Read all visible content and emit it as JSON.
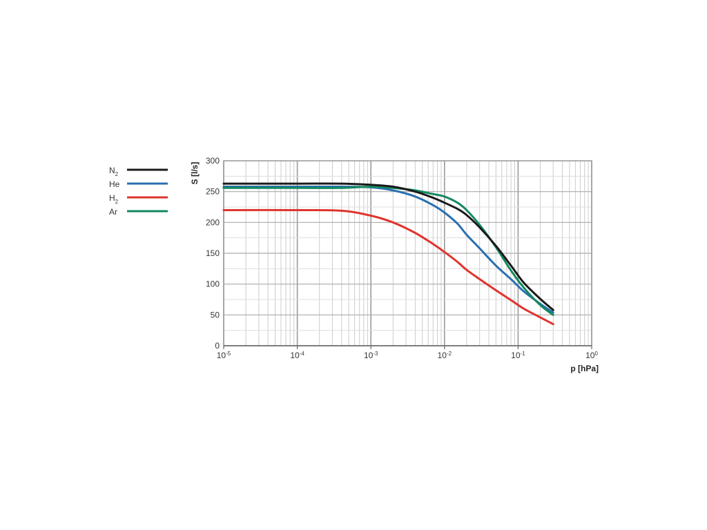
{
  "chart_data": {
    "type": "line",
    "xlabel": "p [hPa]",
    "ylabel": "S [l/s]",
    "x_scale": "log",
    "xlim": [
      1e-05,
      1
    ],
    "ylim": [
      0,
      300
    ],
    "grid": true,
    "legend_placement": "left",
    "x_ticks": [
      {
        "base": "10",
        "exp": "-5",
        "value": 1e-05
      },
      {
        "base": "10",
        "exp": "-4",
        "value": 0.0001
      },
      {
        "base": "10",
        "exp": "-3",
        "value": 0.001
      },
      {
        "base": "10",
        "exp": "-2",
        "value": 0.01
      },
      {
        "base": "10",
        "exp": "-1",
        "value": 0.1
      },
      {
        "base": "10",
        "exp": "0",
        "value": 1
      }
    ],
    "y_ticks": [
      0,
      50,
      100,
      150,
      200,
      250,
      300
    ],
    "series": [
      {
        "name": "N",
        "subscript": "2",
        "color": "#1a1a1a",
        "points": [
          [
            1e-05,
            263
          ],
          [
            0.0001,
            263
          ],
          [
            0.0004,
            263
          ],
          [
            0.001,
            261
          ],
          [
            0.002,
            258
          ],
          [
            0.004,
            250
          ],
          [
            0.007,
            240
          ],
          [
            0.01,
            232
          ],
          [
            0.015,
            222
          ],
          [
            0.02,
            212
          ],
          [
            0.03,
            192
          ],
          [
            0.05,
            162
          ],
          [
            0.08,
            130
          ],
          [
            0.12,
            102
          ],
          [
            0.2,
            76
          ],
          [
            0.3,
            58
          ]
        ]
      },
      {
        "name": "He",
        "subscript": "",
        "color": "#2a6fb0",
        "points": [
          [
            1e-05,
            258
          ],
          [
            0.0001,
            258
          ],
          [
            0.0004,
            258
          ],
          [
            0.001,
            257
          ],
          [
            0.002,
            252
          ],
          [
            0.004,
            242
          ],
          [
            0.007,
            228
          ],
          [
            0.01,
            216
          ],
          [
            0.015,
            198
          ],
          [
            0.02,
            180
          ],
          [
            0.03,
            158
          ],
          [
            0.05,
            130
          ],
          [
            0.08,
            108
          ],
          [
            0.12,
            88
          ],
          [
            0.2,
            68
          ],
          [
            0.3,
            54
          ]
        ]
      },
      {
        "name": "H",
        "subscript": "2",
        "color": "#e0332d",
        "points": [
          [
            1e-05,
            220
          ],
          [
            0.0001,
            220
          ],
          [
            0.0004,
            219
          ],
          [
            0.001,
            211
          ],
          [
            0.002,
            200
          ],
          [
            0.004,
            183
          ],
          [
            0.007,
            165
          ],
          [
            0.01,
            152
          ],
          [
            0.015,
            136
          ],
          [
            0.02,
            123
          ],
          [
            0.03,
            108
          ],
          [
            0.05,
            90
          ],
          [
            0.08,
            74
          ],
          [
            0.12,
            60
          ],
          [
            0.2,
            46
          ],
          [
            0.3,
            35
          ]
        ]
      },
      {
        "name": "Ar",
        "subscript": "",
        "color": "#138a5e",
        "points": [
          [
            1e-05,
            256
          ],
          [
            0.0001,
            256
          ],
          [
            0.0004,
            256
          ],
          [
            0.001,
            258
          ],
          [
            0.002,
            256
          ],
          [
            0.004,
            252
          ],
          [
            0.007,
            246
          ],
          [
            0.01,
            242
          ],
          [
            0.015,
            232
          ],
          [
            0.02,
            220
          ],
          [
            0.03,
            196
          ],
          [
            0.05,
            160
          ],
          [
            0.08,
            122
          ],
          [
            0.12,
            94
          ],
          [
            0.2,
            66
          ],
          [
            0.3,
            50
          ]
        ]
      }
    ]
  }
}
